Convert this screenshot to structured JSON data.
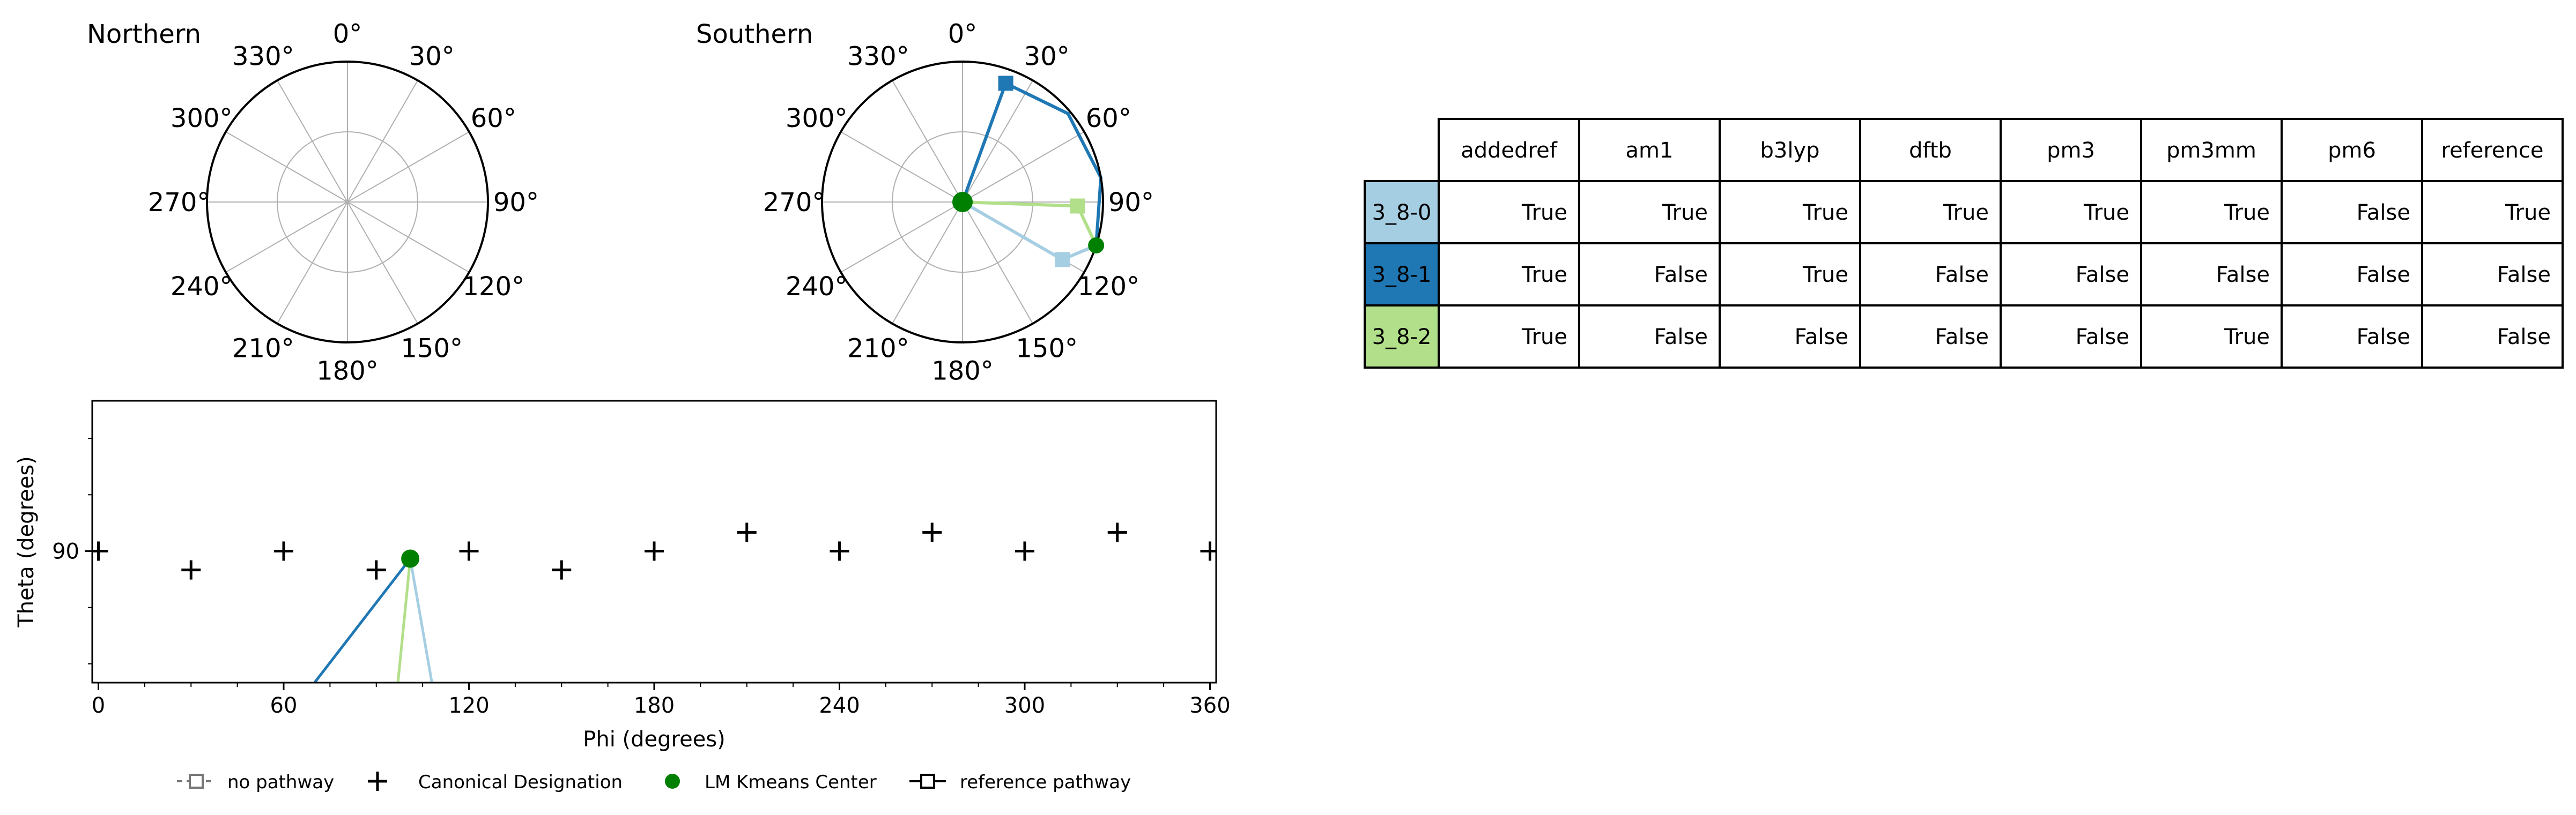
{
  "colors": {
    "light_blue": "#a6cee3",
    "dark_blue": "#1f78b4",
    "light_green": "#b2df8a",
    "kmeans_green": "#008000",
    "grid": "#b0b0b0"
  },
  "polar_angle_labels": [
    "0°",
    "30°",
    "60°",
    "90°",
    "120°",
    "150°",
    "180°",
    "210°",
    "240°",
    "270°",
    "300°",
    "330°"
  ],
  "chart_data": [
    {
      "type": "scatter",
      "panel": "northern-polar",
      "title": "Northern",
      "projection": "polar",
      "angle_ticks_deg": [
        0,
        30,
        60,
        90,
        120,
        150,
        180,
        210,
        240,
        270,
        300,
        330
      ],
      "points": []
    },
    {
      "type": "line",
      "panel": "southern-polar",
      "title": "Southern",
      "projection": "polar",
      "angle_ticks_deg": [
        0,
        30,
        60,
        90,
        120,
        150,
        180,
        210,
        240,
        270,
        300,
        330
      ],
      "center": {
        "phi": 0,
        "r": 0,
        "label": "LM Kmeans Center"
      },
      "boundary_marker": {
        "phi": 108,
        "r": 1.0
      },
      "series": [
        {
          "name": "3_8-0",
          "color": "#a6cee3",
          "points": [
            {
              "phi": 0,
              "r": 0
            },
            {
              "phi": 120,
              "r": 0.82
            },
            {
              "phi": 108,
              "r": 1.0
            }
          ]
        },
        {
          "name": "3_8-1",
          "color": "#1f78b4",
          "points": [
            {
              "phi": 0,
              "r": 0
            },
            {
              "phi": 20,
              "r": 0.9
            },
            {
              "phi": 50,
              "r": 0.98
            },
            {
              "phi": 80,
              "r": 1.0
            },
            {
              "phi": 108,
              "r": 1.0
            }
          ]
        },
        {
          "name": "3_8-2",
          "color": "#b2df8a",
          "points": [
            {
              "phi": 0,
              "r": 0
            },
            {
              "phi": 92,
              "r": 0.82
            },
            {
              "phi": 108,
              "r": 1.0
            }
          ]
        }
      ]
    },
    {
      "type": "scatter",
      "panel": "cartesian",
      "xlabel": "Phi (degrees)",
      "ylabel": "Theta (degrees)",
      "xlim": [
        -2,
        362
      ],
      "ylim": [
        55,
        130
      ],
      "xticks": [
        0,
        60,
        120,
        180,
        240,
        300,
        360
      ],
      "yticks": [
        90
      ],
      "canonical": [
        {
          "phi": 0,
          "theta": 90
        },
        {
          "phi": 30,
          "theta": 85
        },
        {
          "phi": 60,
          "theta": 90
        },
        {
          "phi": 90,
          "theta": 85
        },
        {
          "phi": 120,
          "theta": 90
        },
        {
          "phi": 150,
          "theta": 85
        },
        {
          "phi": 180,
          "theta": 90
        },
        {
          "phi": 210,
          "theta": 95
        },
        {
          "phi": 240,
          "theta": 90
        },
        {
          "phi": 270,
          "theta": 95
        },
        {
          "phi": 300,
          "theta": 90
        },
        {
          "phi": 330,
          "theta": 95
        },
        {
          "phi": 360,
          "theta": 90
        }
      ],
      "kmeans_center": {
        "phi": 101,
        "theta": 88
      },
      "series": [
        {
          "name": "3_8-0",
          "color": "#a6cee3",
          "points": [
            {
              "phi": 101,
              "theta": 88
            },
            {
              "phi": 108,
              "theta": 55
            }
          ]
        },
        {
          "name": "3_8-1",
          "color": "#1f78b4",
          "points": [
            {
              "phi": 101,
              "theta": 88
            },
            {
              "phi": 86,
              "theta": 72
            },
            {
              "phi": 70,
              "theta": 55
            }
          ]
        },
        {
          "name": "3_8-2",
          "color": "#b2df8a",
          "points": [
            {
              "phi": 101,
              "theta": 88
            },
            {
              "phi": 97,
              "theta": 55
            }
          ]
        }
      ]
    },
    {
      "type": "table",
      "panel": "pathway-table",
      "columns": [
        "addedref",
        "am1",
        "b3lyp",
        "dftb",
        "pm3",
        "pm3mm",
        "pm6",
        "reference"
      ],
      "rows": [
        {
          "label": "3_8-0",
          "color": "#a6cee3",
          "values": [
            "True",
            "True",
            "True",
            "True",
            "True",
            "True",
            "False",
            "True"
          ]
        },
        {
          "label": "3_8-1",
          "color": "#1f78b4",
          "values": [
            "True",
            "False",
            "True",
            "False",
            "False",
            "False",
            "False",
            "False"
          ]
        },
        {
          "label": "3_8-2",
          "color": "#b2df8a",
          "values": [
            "True",
            "False",
            "False",
            "False",
            "False",
            "True",
            "False",
            "False"
          ]
        }
      ]
    }
  ],
  "legend": {
    "items": [
      {
        "label": "no pathway",
        "marker": "dashed-open-square"
      },
      {
        "label": "Canonical Designation",
        "marker": "plus"
      },
      {
        "label": "LM Kmeans Center",
        "marker": "green-dot"
      },
      {
        "label": "reference pathway",
        "marker": "solid-open-square"
      }
    ]
  }
}
